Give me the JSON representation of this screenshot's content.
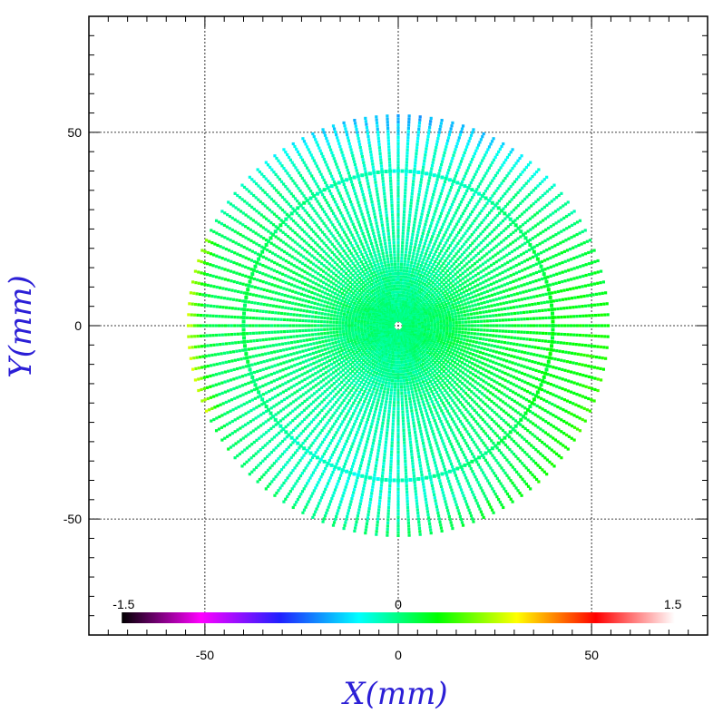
{
  "chart_data": {
    "type": "scatter",
    "title": "",
    "xlabel": "X(mm)",
    "ylabel": "Y(mm)",
    "xlim": [
      -80,
      80
    ],
    "ylim": [
      -80,
      80
    ],
    "xticks": [
      -50,
      0,
      50
    ],
    "yticks": [
      -50,
      0,
      50
    ],
    "xtick_labels": [
      "-50",
      "0",
      "50"
    ],
    "ytick_labels": [
      "-50",
      "0",
      "50"
    ],
    "grid": true,
    "pattern": {
      "radial_lines": 120,
      "max_radius": 55,
      "ring_radius": 40
    },
    "colorbar": {
      "min": -1.5,
      "max": 1.5,
      "labels": [
        "-1.5",
        "0",
        "1.5"
      ],
      "placement": "bottom",
      "colors": [
        "#000000",
        "#ff00ff",
        "#2020ff",
        "#00ffff",
        "#00ff00",
        "#ffff00",
        "#ff0000",
        "#ffffff"
      ]
    }
  }
}
